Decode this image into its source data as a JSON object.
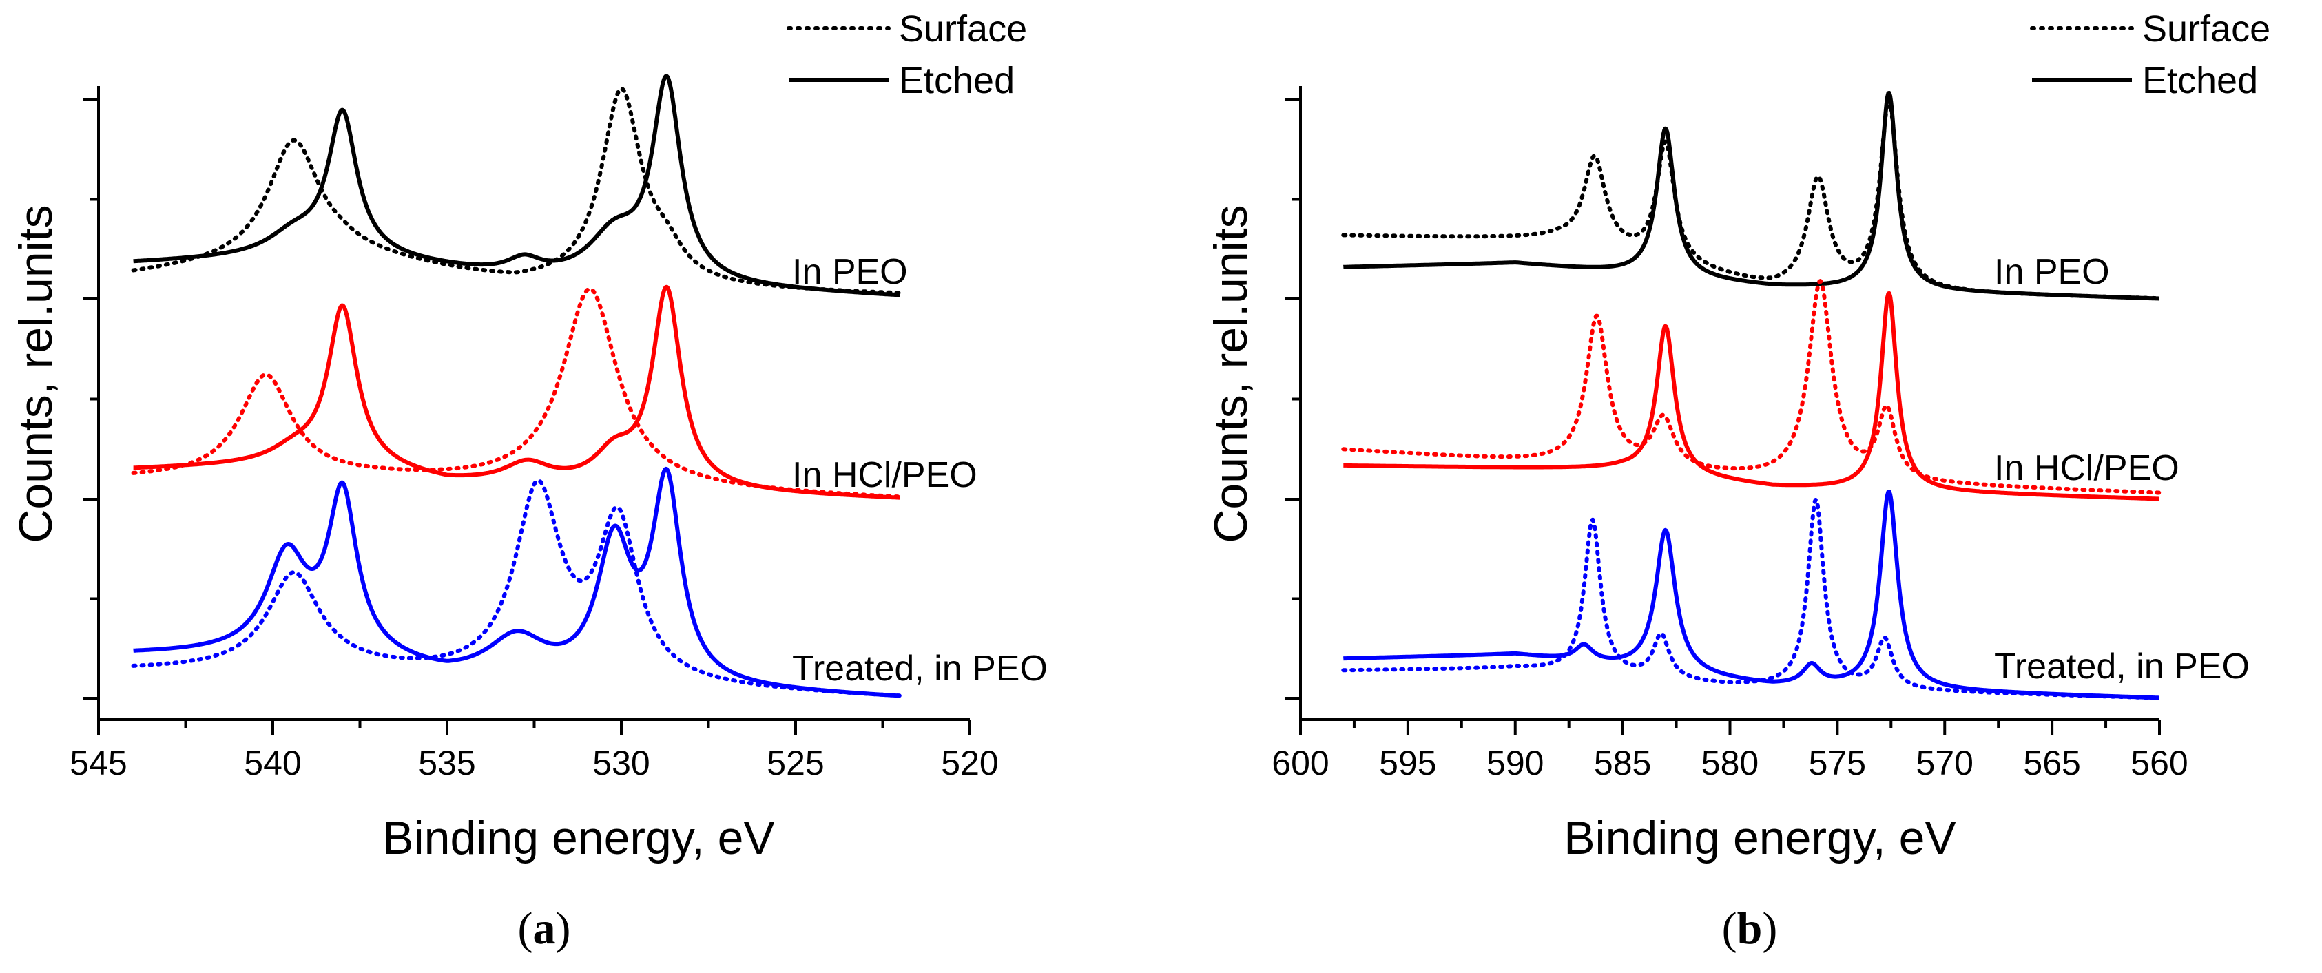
{
  "chart_data": [
    {
      "panel": "a",
      "type": "line",
      "panel_label_open": "(",
      "panel_label_letter": "a",
      "panel_label_close": ")",
      "xlabel": "Binding energy, eV",
      "ylabel": "Counts, rel.units",
      "xlim": [
        545,
        520
      ],
      "x_reversed": true,
      "xticks": [
        545,
        540,
        535,
        530,
        525,
        520
      ],
      "y_ticks_labeled": false,
      "legend": {
        "position": "top-right",
        "entries": [
          {
            "label": "Surface",
            "style": "dotted"
          },
          {
            "label": "Etched",
            "style": "solid"
          }
        ]
      },
      "x_range_data": [
        544,
        522
      ],
      "groups": [
        {
          "name": "In PEO",
          "color": "#000000",
          "offset": 2,
          "series": [
            {
              "name": "Surface",
              "style": "dotted",
              "baseline": [
                [
                  544,
                  0.12
                ],
                [
                  538,
                  0.22
                ],
                [
                  533,
                  0.07
                ],
                [
                  522,
                  0.02
                ]
              ],
              "peaks": [
                {
                  "center": 539.4,
                  "height": 0.6,
                  "width": 0.9
                },
                {
                  "center": 530.0,
                  "height": 0.98,
                  "width": 0.7
                },
                {
                  "center": 528.7,
                  "height": 0.12,
                  "width": 0.6
                }
              ]
            },
            {
              "name": "Etched",
              "style": "solid",
              "baseline": [
                [
                  544,
                  0.18
                ],
                [
                  538,
                  0.22
                ],
                [
                  533,
                  0.1
                ],
                [
                  522,
                  0.01
                ]
              ],
              "peaks": [
                {
                  "center": 538.0,
                  "height": 0.7,
                  "width": 0.5
                },
                {
                  "center": 539.4,
                  "height": 0.1,
                  "width": 0.9
                },
                {
                  "center": 530.2,
                  "height": 0.22,
                  "width": 0.9
                },
                {
                  "center": 532.8,
                  "height": 0.08,
                  "width": 0.6
                },
                {
                  "center": 528.7,
                  "height": 1.0,
                  "width": 0.5
                }
              ]
            }
          ]
        },
        {
          "name": "In HCl/PEO",
          "color": "#ff0000",
          "offset": 1,
          "series": [
            {
              "name": "Surface",
              "style": "dotted",
              "baseline": [
                [
                  544,
                  0.1
                ],
                [
                  537,
                  0.1
                ],
                [
                  522,
                  0.0
                ]
              ],
              "peaks": [
                {
                  "center": 540.2,
                  "height": 0.52,
                  "width": 0.9
                },
                {
                  "center": 530.9,
                  "height": 1.0,
                  "width": 0.95
                }
              ]
            },
            {
              "name": "Etched",
              "style": "solid",
              "baseline": [
                [
                  544,
                  0.15
                ],
                [
                  538,
                  0.18
                ],
                [
                  535,
                  0.08
                ],
                [
                  522,
                  0.0
                ]
              ],
              "peaks": [
                {
                  "center": 538.0,
                  "height": 0.78,
                  "width": 0.5
                },
                {
                  "center": 539.4,
                  "height": 0.06,
                  "width": 0.8
                },
                {
                  "center": 532.7,
                  "height": 0.1,
                  "width": 0.8
                },
                {
                  "center": 530.2,
                  "height": 0.15,
                  "width": 0.7
                },
                {
                  "center": 528.7,
                  "height": 1.0,
                  "width": 0.5
                }
              ]
            }
          ]
        },
        {
          "name": "Treated, in PEO",
          "color": "#0000ff",
          "offset": 0,
          "series": [
            {
              "name": "Surface",
              "style": "dotted",
              "baseline": [
                [
                  544,
                  0.14
                ],
                [
                  538,
                  0.14
                ],
                [
                  533,
                  0.08
                ],
                [
                  522,
                  0.0
                ]
              ],
              "peaks": [
                {
                  "center": 539.4,
                  "height": 0.48,
                  "width": 0.9
                },
                {
                  "center": 532.4,
                  "height": 0.95,
                  "width": 0.8
                },
                {
                  "center": 530.1,
                  "height": 0.8,
                  "width": 0.7
                }
              ]
            },
            {
              "name": "Etched",
              "style": "solid",
              "baseline": [
                [
                  544,
                  0.22
                ],
                [
                  538,
                  0.22
                ],
                [
                  535,
                  0.1
                ],
                [
                  522,
                  0.0
                ]
              ],
              "peaks": [
                {
                  "center": 539.6,
                  "height": 0.48,
                  "width": 0.7
                },
                {
                  "center": 538.0,
                  "height": 0.78,
                  "width": 0.5
                },
                {
                  "center": 533.0,
                  "height": 0.2,
                  "width": 1.0
                },
                {
                  "center": 530.2,
                  "height": 0.68,
                  "width": 0.6
                },
                {
                  "center": 528.7,
                  "height": 1.0,
                  "width": 0.5
                }
              ]
            }
          ]
        }
      ]
    },
    {
      "panel": "b",
      "type": "line",
      "panel_label_open": "(",
      "panel_label_letter": "b",
      "panel_label_close": ")",
      "xlabel": "Binding energy, eV",
      "ylabel": "Counts, rel.units",
      "xlim": [
        600,
        560
      ],
      "x_reversed": true,
      "xticks": [
        600,
        595,
        590,
        585,
        580,
        575,
        570,
        565,
        560
      ],
      "y_ticks_labeled": false,
      "legend": {
        "position": "top-right",
        "entries": [
          {
            "label": "Surface",
            "style": "dotted"
          },
          {
            "label": "Etched",
            "style": "solid"
          }
        ]
      },
      "x_range_data": [
        598,
        560
      ],
      "groups": [
        {
          "name": "In PEO",
          "color": "#000000",
          "offset": 2,
          "series": [
            {
              "name": "Surface",
              "style": "dotted",
              "baseline": [
                [
                  598,
                  0.32
                ],
                [
                  588,
                  0.3
                ],
                [
                  578,
                  0.05
                ],
                [
                  560,
                  0.0
                ]
              ],
              "peaks": [
                {
                  "center": 586.3,
                  "height": 0.45,
                  "width": 0.6
                },
                {
                  "center": 583.0,
                  "height": 0.6,
                  "width": 0.5
                },
                {
                  "center": 575.9,
                  "height": 0.55,
                  "width": 0.6
                },
                {
                  "center": 572.6,
                  "height": 0.95,
                  "width": 0.5
                }
              ]
            },
            {
              "name": "Etched",
              "style": "solid",
              "baseline": [
                [
                  598,
                  0.16
                ],
                [
                  590,
                  0.18
                ],
                [
                  578,
                  0.06
                ],
                [
                  560,
                  0.0
                ]
              ],
              "peaks": [
                {
                  "center": 583.0,
                  "height": 0.75,
                  "width": 0.5
                },
                {
                  "center": 572.6,
                  "height": 1.0,
                  "width": 0.45
                }
              ]
            }
          ]
        },
        {
          "name": "In HCl/PEO",
          "color": "#ff0000",
          "offset": 1,
          "series": [
            {
              "name": "Surface",
              "style": "dotted",
              "baseline": [
                [
                  598,
                  0.25
                ],
                [
                  588,
                  0.18
                ],
                [
                  578,
                  0.1
                ],
                [
                  560,
                  0.03
                ]
              ],
              "peaks": [
                {
                  "center": 586.2,
                  "height": 0.75,
                  "width": 0.6
                },
                {
                  "center": 583.1,
                  "height": 0.25,
                  "width": 0.6
                },
                {
                  "center": 575.8,
                  "height": 1.0,
                  "width": 0.65
                },
                {
                  "center": 572.7,
                  "height": 0.35,
                  "width": 0.5
                }
              ]
            },
            {
              "name": "Etched",
              "style": "solid",
              "baseline": [
                [
                  598,
                  0.17
                ],
                [
                  585,
                  0.15
                ],
                [
                  578,
                  0.06
                ],
                [
                  560,
                  0.0
                ]
              ],
              "peaks": [
                {
                  "center": 583.0,
                  "height": 0.75,
                  "width": 0.5
                },
                {
                  "center": 572.6,
                  "height": 1.0,
                  "width": 0.45
                }
              ]
            }
          ]
        },
        {
          "name": "Treated, in PEO",
          "color": "#0000ff",
          "offset": 0,
          "series": [
            {
              "name": "Surface",
              "style": "dotted",
              "baseline": [
                [
                  598,
                  0.14
                ],
                [
                  590,
                  0.15
                ],
                [
                  580,
                  0.06
                ],
                [
                  560,
                  0.0
                ]
              ],
              "peaks": [
                {
                  "center": 586.4,
                  "height": 0.78,
                  "width": 0.45
                },
                {
                  "center": 583.2,
                  "height": 0.22,
                  "width": 0.45
                },
                {
                  "center": 576.0,
                  "height": 0.95,
                  "width": 0.45
                },
                {
                  "center": 572.8,
                  "height": 0.25,
                  "width": 0.45
                }
              ]
            },
            {
              "name": "Etched",
              "style": "solid",
              "baseline": [
                [
                  598,
                  0.2
                ],
                [
                  590,
                  0.22
                ],
                [
                  578,
                  0.06
                ],
                [
                  560,
                  0.0
                ]
              ],
              "peaks": [
                {
                  "center": 583.0,
                  "height": 0.72,
                  "width": 0.55
                },
                {
                  "center": 576.2,
                  "height": 0.1,
                  "width": 0.5
                },
                {
                  "center": 572.6,
                  "height": 1.0,
                  "width": 0.5
                },
                {
                  "center": 586.8,
                  "height": 0.08,
                  "width": 0.5
                }
              ]
            }
          ]
        }
      ]
    }
  ]
}
